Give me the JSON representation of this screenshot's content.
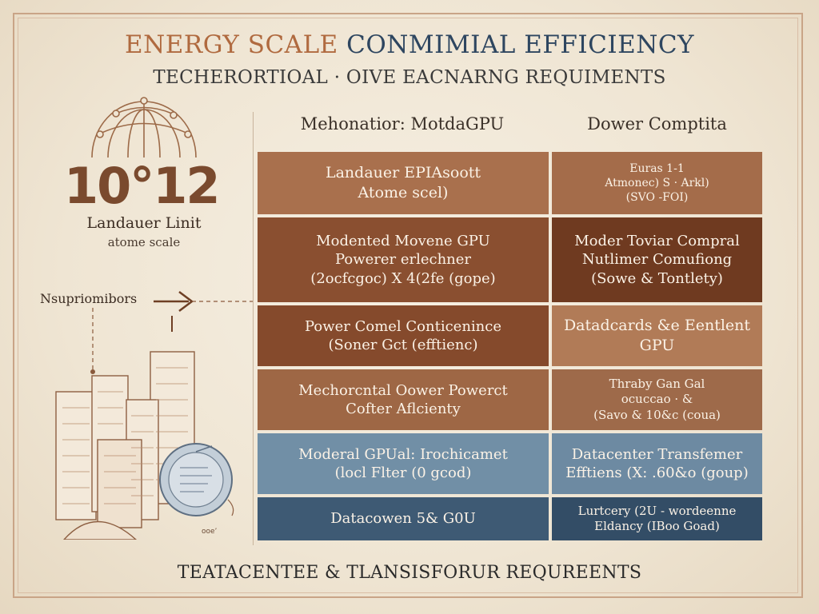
{
  "title_part1": "ENERGY SCALE",
  "title_part2": "CONMIMIAL EFFICIENCY",
  "subtitle": "TECHERORTIOAL · OIVE EACNARNG REQUIMENTS",
  "left": {
    "big_number": "10°12",
    "label": "Landauer Linit",
    "sublabel": "atome scale",
    "arrow_label": "Nsupriomibors",
    "building_caption": "ooe’"
  },
  "headers": [
    "Mehonatior: MotdaGPU",
    "Dower Comptita"
  ],
  "rows": [
    {
      "left": [
        "Landauer EPIAsoott",
        "Atome scel)"
      ],
      "right": [
        "Euras 1-1",
        "Atmonec) S · Arkl)",
        "(SVO -FOI)"
      ],
      "left_color": "#a9704d",
      "right_color": "#a46c4a"
    },
    {
      "left": [
        "Modented Movene GPU",
        "Powerer erlechner",
        "(2ocfcgoc) X 4(2fe (gope)"
      ],
      "right": [
        "Moder Toviar Compral",
        "Nutlimer Comufiong",
        "(Sowe & Tontlety)"
      ],
      "left_color": "#8a4f30",
      "right_color": "#6f3a20"
    },
    {
      "left": [
        "Power Comel Conticenince",
        "(Soner Gct (efftienc)"
      ],
      "right": [
        "Datadcards &e Eentlent",
        "GPU"
      ],
      "left_color": "#854a2c",
      "right_color": "#b17b57"
    },
    {
      "left": [
        "Mechorcntal Oower Powerct",
        "Cofter Aflcienty"
      ],
      "right": [
        "Thraby Gan Gal",
        "ocuccao · &",
        "(Savo & 10&c (coua)"
      ],
      "left_color": "#9e6745",
      "right_color": "#9e6a4a"
    },
    {
      "left": [
        "Moderal GPUal: Irochicamet",
        "(locl Flter (0 gcod)"
      ],
      "right": [
        "Datacenter Transfemer",
        "Efftiens (X: .60&o (goup)"
      ],
      "left_color": "#718fa6",
      "right_color": "#6d8aa2"
    },
    {
      "left": [
        "Datacowen 5& G0U"
      ],
      "right": [
        "Lurtcery (2U - wordeenne",
        "Eldancy (IBoo Goad)"
      ],
      "left_color": "#3e5a74",
      "right_color": "#334d66"
    }
  ],
  "footer": "TEATACENTEE & TLANSISFORUR REQUREENTS"
}
